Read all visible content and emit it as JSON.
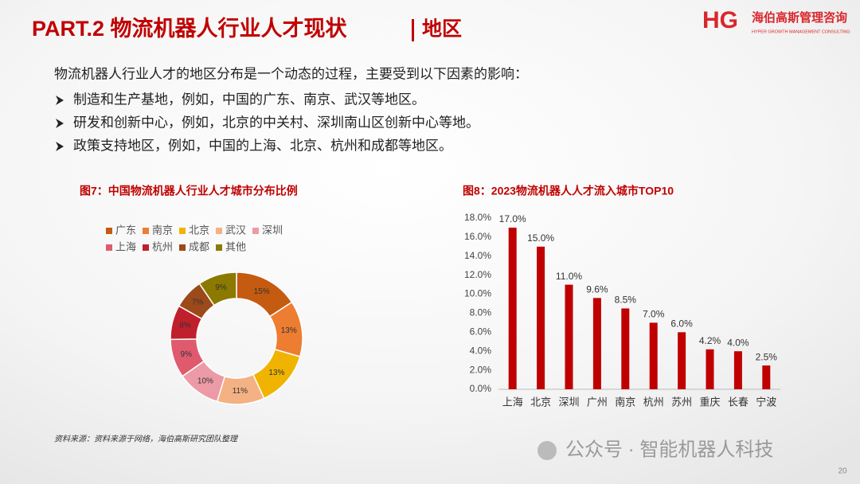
{
  "header": {
    "title": "PART.2 物流机器人行业人才现状",
    "section": "地区",
    "logo_mark": "HG",
    "logo_name": "海伯高斯管理咨询",
    "logo_sub": "HYPER GROWTH MANAGEMENT CONSULTING"
  },
  "intro": "物流机器人行业人才的地区分布是一个动态的过程，主要受到以下因素的影响：",
  "bullets": [
    "制造和生产基地，例如，中国的广东、南京、武汉等地区。",
    "研发和创新中心，例如，北京的中关村、深圳南山区创新中心等地。",
    "政策支持地区，例如，中国的上海、北京、杭州和成都等地区。"
  ],
  "chart_data": [
    {
      "type": "pie",
      "donut": true,
      "title": "图7：中国物流机器人行业人才城市分布比例",
      "categories": [
        "广东",
        "南京",
        "北京",
        "武汉",
        "深圳",
        "上海",
        "杭州",
        "成都",
        "其他"
      ],
      "values": [
        15,
        13,
        13,
        11,
        10,
        9,
        8,
        7,
        9
      ],
      "value_labels": [
        "15%",
        "13%",
        "13%",
        "11%",
        "10%",
        "9%",
        "8%",
        "7%",
        "9%"
      ],
      "colors": [
        "#c55a11",
        "#ed7d31",
        "#f0b400",
        "#f4b183",
        "#ec9ba6",
        "#e05a6e",
        "#c0202c",
        "#9c4a1a",
        "#8c7a00"
      ]
    },
    {
      "type": "bar",
      "title": "图8：2023物流机器人人才流入城市TOP10",
      "categories": [
        "上海",
        "北京",
        "深圳",
        "广州",
        "南京",
        "杭州",
        "苏州",
        "重庆",
        "长春",
        "宁波"
      ],
      "values": [
        17.0,
        15.0,
        11.0,
        9.6,
        8.5,
        7.0,
        6.0,
        4.2,
        4.0,
        2.5
      ],
      "value_labels": [
        "17.0%",
        "15.0%",
        "11.0%",
        "9.6%",
        "8.5%",
        "7.0%",
        "6.0%",
        "4.2%",
        "4.0%",
        "2.5%"
      ],
      "color": "#c00000",
      "ylim": [
        0,
        18
      ],
      "yticks": [
        {
          "value": 0,
          "label": "0.0%"
        },
        {
          "value": 2,
          "label": "2.0%"
        },
        {
          "value": 4,
          "label": "4.0%"
        },
        {
          "value": 6,
          "label": "6.0%"
        },
        {
          "value": 8,
          "label": "8.0%"
        },
        {
          "value": 10,
          "label": "10.0%"
        },
        {
          "value": 12,
          "label": "12.0%"
        },
        {
          "value": 14,
          "label": "14.0%"
        },
        {
          "value": 16,
          "label": "16.0%"
        },
        {
          "value": 18,
          "label": "18.0%"
        }
      ]
    }
  ],
  "source": "资料来源：资料来源于网络，海伯高斯研究团队整理",
  "watermark": "公众号 · 智能机器人科技",
  "page_number": "20"
}
